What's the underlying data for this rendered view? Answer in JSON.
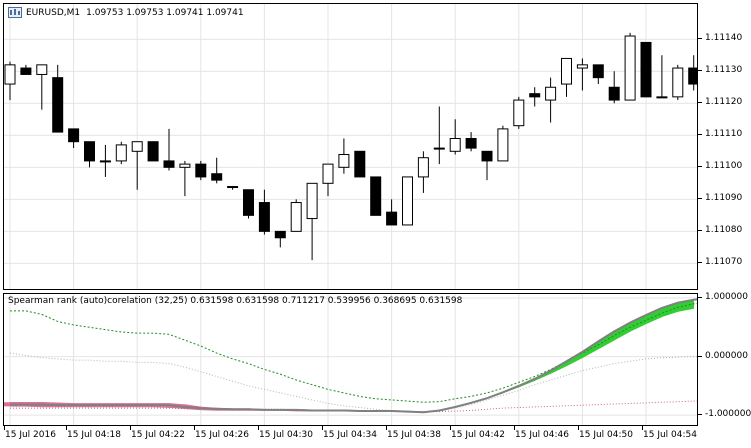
{
  "colors": {
    "background": "#ffffff",
    "grid": "#e4e4e4",
    "bull_body": "#ffffff",
    "bear_body": "#000000",
    "outline": "#000000",
    "band_positive": "#32cd32",
    "band_negative": "#db7093",
    "gray_line": "#808080",
    "green_dotted": "#228b22",
    "pink_dotted": "#c86482"
  },
  "main_chart": {
    "symbol_label": "EURUSD,M1",
    "ohlc_label": "1.09753 1.09753 1.09741 1.09741",
    "icon": "chart-window-icon"
  },
  "indicator": {
    "title": "Spearman rank (auto)corelation (32,25) 0.631598 0.631598 0.711217 0.539956 0.368695 0.631598"
  },
  "price_axis": [
    "1.11140",
    "1.11130",
    "1.11120",
    "1.11110",
    "1.11100",
    "1.11090",
    "1.11080",
    "1.11070"
  ],
  "indicator_axis": [
    "1.000000",
    "0.000000",
    "-1.000000"
  ],
  "time_axis": [
    "15 Jul 2016",
    "15 Jul 04:18",
    "15 Jul 04:22",
    "15 Jul 04:26",
    "15 Jul 04:30",
    "15 Jul 04:34",
    "15 Jul 04:38",
    "15 Jul 04:42",
    "15 Jul 04:46",
    "15 Jul 04:50",
    "15 Jul 04:54"
  ],
  "chart_data": {
    "type": "candlestick",
    "price_range": [
      1.11062,
      1.11151
    ],
    "candles": [
      {
        "o": 1.11126,
        "h": 1.11133,
        "l": 1.11121,
        "c": 1.11132
      },
      {
        "o": 1.11131,
        "h": 1.11132,
        "l": 1.11129,
        "c": 1.11129
      },
      {
        "o": 1.11129,
        "h": 1.11132,
        "l": 1.11118,
        "c": 1.11132
      },
      {
        "o": 1.11128,
        "h": 1.11132,
        "l": 1.11111,
        "c": 1.11111
      },
      {
        "o": 1.11112,
        "h": 1.11112,
        "l": 1.11106,
        "c": 1.11108
      },
      {
        "o": 1.11108,
        "h": 1.11108,
        "l": 1.111,
        "c": 1.11102
      },
      {
        "o": 1.11102,
        "h": 1.11107,
        "l": 1.11097,
        "c": 1.11102
      },
      {
        "o": 1.11102,
        "h": 1.11108,
        "l": 1.11101,
        "c": 1.11107
      },
      {
        "o": 1.11105,
        "h": 1.11108,
        "l": 1.11093,
        "c": 1.11108
      },
      {
        "o": 1.11108,
        "h": 1.11108,
        "l": 1.11102,
        "c": 1.11102
      },
      {
        "o": 1.11102,
        "h": 1.11112,
        "l": 1.11099,
        "c": 1.111
      },
      {
        "o": 1.111,
        "h": 1.11102,
        "l": 1.11091,
        "c": 1.11101
      },
      {
        "o": 1.11101,
        "h": 1.11102,
        "l": 1.11096,
        "c": 1.11097
      },
      {
        "o": 1.11098,
        "h": 1.11103,
        "l": 1.11095,
        "c": 1.11096
      },
      {
        "o": 1.11094,
        "h": 1.11094,
        "l": 1.11093,
        "c": 1.11094
      },
      {
        "o": 1.11093,
        "h": 1.11093,
        "l": 1.11084,
        "c": 1.11085
      },
      {
        "o": 1.11089,
        "h": 1.11093,
        "l": 1.11079,
        "c": 1.1108
      },
      {
        "o": 1.1108,
        "h": 1.1108,
        "l": 1.11075,
        "c": 1.11078
      },
      {
        "o": 1.1108,
        "h": 1.1109,
        "l": 1.1108,
        "c": 1.11089
      },
      {
        "o": 1.11084,
        "h": 1.11095,
        "l": 1.11071,
        "c": 1.11095
      },
      {
        "o": 1.11095,
        "h": 1.11101,
        "l": 1.11091,
        "c": 1.11101
      },
      {
        "o": 1.111,
        "h": 1.11109,
        "l": 1.11098,
        "c": 1.11104
      },
      {
        "o": 1.11105,
        "h": 1.11105,
        "l": 1.11097,
        "c": 1.11097
      },
      {
        "o": 1.11097,
        "h": 1.11097,
        "l": 1.11085,
        "c": 1.11085
      },
      {
        "o": 1.11086,
        "h": 1.1109,
        "l": 1.11082,
        "c": 1.11082
      },
      {
        "o": 1.11082,
        "h": 1.11097,
        "l": 1.11082,
        "c": 1.11097
      },
      {
        "o": 1.11097,
        "h": 1.11105,
        "l": 1.11092,
        "c": 1.11103
      },
      {
        "o": 1.11106,
        "h": 1.11119,
        "l": 1.11101,
        "c": 1.11106
      },
      {
        "o": 1.11105,
        "h": 1.11115,
        "l": 1.11104,
        "c": 1.11109
      },
      {
        "o": 1.11109,
        "h": 1.11111,
        "l": 1.11105,
        "c": 1.11106
      },
      {
        "o": 1.11105,
        "h": 1.11105,
        "l": 1.11096,
        "c": 1.11102
      },
      {
        "o": 1.11102,
        "h": 1.11113,
        "l": 1.11102,
        "c": 1.11112
      },
      {
        "o": 1.11113,
        "h": 1.11122,
        "l": 1.11112,
        "c": 1.11121
      },
      {
        "o": 1.11123,
        "h": 1.11125,
        "l": 1.11119,
        "c": 1.11122
      },
      {
        "o": 1.11121,
        "h": 1.11128,
        "l": 1.11114,
        "c": 1.11125
      },
      {
        "o": 1.11126,
        "h": 1.11134,
        "l": 1.11122,
        "c": 1.11134
      },
      {
        "o": 1.11131,
        "h": 1.11134,
        "l": 1.11124,
        "c": 1.11132
      },
      {
        "o": 1.11132,
        "h": 1.11132,
        "l": 1.11126,
        "c": 1.11128
      },
      {
        "o": 1.11125,
        "h": 1.1113,
        "l": 1.1112,
        "c": 1.11121
      },
      {
        "o": 1.11121,
        "h": 1.11142,
        "l": 1.11121,
        "c": 1.11141
      },
      {
        "o": 1.11139,
        "h": 1.11139,
        "l": 1.11122,
        "c": 1.11122
      },
      {
        "o": 1.11122,
        "h": 1.11135,
        "l": 1.11122,
        "c": 1.11122
      },
      {
        "o": 1.11122,
        "h": 1.11132,
        "l": 1.11121,
        "c": 1.11131
      },
      {
        "o": 1.11131,
        "h": 1.11135,
        "l": 1.11124,
        "c": 1.11126
      }
    ],
    "indicator_range": [
      -1.1,
      1.0
    ],
    "series": [
      {
        "role": "band_upper",
        "values": [
          -0.78,
          -0.78,
          -0.78,
          -0.79,
          -0.8,
          -0.8,
          -0.8,
          -0.8,
          -0.8,
          -0.8,
          -0.8,
          -0.82,
          -0.86,
          -0.88,
          -0.89,
          -0.89,
          -0.9,
          -0.9,
          -0.9,
          -0.91,
          -0.91,
          -0.91,
          -0.92,
          -0.92,
          -0.92,
          -0.93,
          -0.94,
          -0.92,
          -0.86,
          -0.79,
          -0.71,
          -0.61,
          -0.5,
          -0.38,
          -0.24,
          -0.08,
          0.08,
          0.26,
          0.43,
          0.58,
          0.71,
          0.83,
          0.92,
          0.97,
          1.0,
          1.0
        ]
      },
      {
        "role": "band_lower",
        "values": [
          -0.85,
          -0.85,
          -0.86,
          -0.86,
          -0.86,
          -0.86,
          -0.86,
          -0.86,
          -0.86,
          -0.86,
          -0.87,
          -0.89,
          -0.91,
          -0.92,
          -0.92,
          -0.92,
          -0.92,
          -0.92,
          -0.93,
          -0.93,
          -0.93,
          -0.93,
          -0.93,
          -0.94,
          -0.94,
          -0.94,
          -0.95,
          -0.93,
          -0.87,
          -0.8,
          -0.72,
          -0.62,
          -0.52,
          -0.41,
          -0.29,
          -0.16,
          -0.02,
          0.13,
          0.28,
          0.43,
          0.56,
          0.68,
          0.77,
          0.82,
          0.83,
          0.86
        ]
      },
      {
        "role": "gray_solid",
        "values": [
          -0.82,
          -0.82,
          -0.82,
          -0.83,
          -0.83,
          -0.83,
          -0.83,
          -0.83,
          -0.83,
          -0.83,
          -0.83,
          -0.86,
          -0.88,
          -0.89,
          -0.9,
          -0.9,
          -0.91,
          -0.91,
          -0.91,
          -0.92,
          -0.92,
          -0.92,
          -0.93,
          -0.93,
          -0.93,
          -0.94,
          -0.95,
          -0.92,
          -0.86,
          -0.79,
          -0.71,
          -0.61,
          -0.5,
          -0.38,
          -0.24,
          -0.08,
          0.08,
          0.26,
          0.43,
          0.58,
          0.71,
          0.83,
          0.92,
          0.97,
          1.0,
          1.0
        ]
      },
      {
        "role": "green_dotted",
        "values": [
          0.78,
          0.78,
          0.72,
          0.6,
          0.54,
          0.5,
          0.46,
          0.42,
          0.4,
          0.4,
          0.38,
          0.28,
          0.18,
          0.06,
          -0.04,
          -0.12,
          -0.22,
          -0.3,
          -0.4,
          -0.48,
          -0.56,
          -0.62,
          -0.68,
          -0.72,
          -0.74,
          -0.76,
          -0.78,
          -0.77,
          -0.72,
          -0.68,
          -0.62,
          -0.54,
          -0.44,
          -0.34,
          -0.22,
          -0.08,
          0.06,
          0.2,
          0.36,
          0.5,
          0.62,
          0.74,
          0.84,
          0.9,
          0.94,
          0.96
        ]
      },
      {
        "role": "gray_dotted",
        "values": [
          0.06,
          0.02,
          -0.02,
          -0.04,
          -0.06,
          -0.06,
          -0.08,
          -0.08,
          -0.1,
          -0.1,
          -0.12,
          -0.18,
          -0.26,
          -0.34,
          -0.42,
          -0.5,
          -0.56,
          -0.62,
          -0.68,
          -0.74,
          -0.8,
          -0.84,
          -0.87,
          -0.9,
          -0.92,
          -0.94,
          -0.95,
          -0.93,
          -0.88,
          -0.82,
          -0.74,
          -0.66,
          -0.58,
          -0.48,
          -0.4,
          -0.32,
          -0.24,
          -0.18,
          -0.12,
          -0.08,
          -0.04,
          -0.02,
          -0.01,
          0.0,
          0.0,
          0.0
        ]
      },
      {
        "role": "pink_dotted",
        "values": [
          -0.88,
          -0.88,
          -0.88,
          -0.88,
          -0.88,
          -0.88,
          -0.88,
          -0.88,
          -0.88,
          -0.88,
          -0.88,
          -0.89,
          -0.89,
          -0.9,
          -0.9,
          -0.9,
          -0.9,
          -0.9,
          -0.91,
          -0.91,
          -0.92,
          -0.92,
          -0.92,
          -0.93,
          -0.93,
          -0.94,
          -0.94,
          -0.94,
          -0.93,
          -0.92,
          -0.9,
          -0.88,
          -0.87,
          -0.86,
          -0.85,
          -0.84,
          -0.83,
          -0.82,
          -0.81,
          -0.8,
          -0.79,
          -0.78,
          -0.77,
          -0.76,
          -0.75,
          -0.74
        ]
      }
    ]
  }
}
